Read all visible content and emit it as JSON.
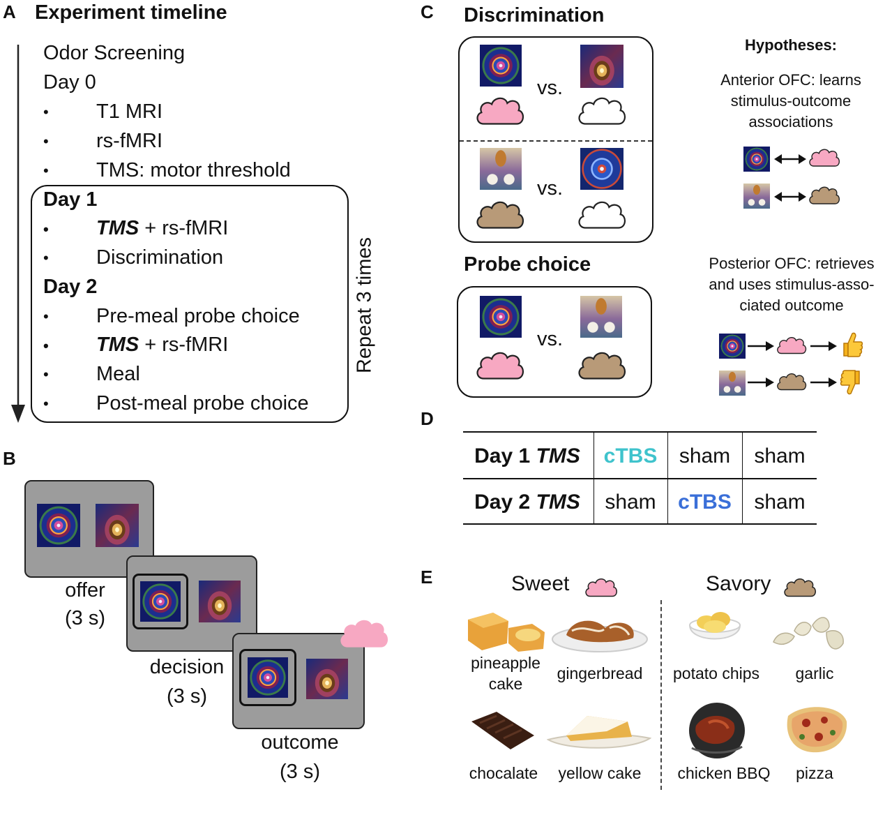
{
  "panels": {
    "a": "A",
    "b": "B",
    "c": "C",
    "d": "D",
    "e": "E"
  },
  "timeline": {
    "title": "Experiment timeline",
    "odor_screening": "Odor Screening",
    "day0": {
      "heading": "Day 0",
      "items": [
        "T1 MRI",
        "rs-fMRI",
        "TMS: motor threshold"
      ]
    },
    "day1": {
      "heading": "Day 1",
      "tms": "TMS",
      "tms_rest": " + rs-fMRI",
      "item2": "Discrimination"
    },
    "day2": {
      "heading": "Day 2",
      "item1": "Pre-meal probe choice",
      "tms": "TMS",
      "tms_rest": " + rs-fMRI",
      "item3": "Meal",
      "item4": "Post-meal probe choice"
    },
    "bullet": "•",
    "repeat": "Repeat 3 times"
  },
  "task": {
    "offer": "offer",
    "offer_dur": "(3 s)",
    "decision": "decision",
    "decision_dur": "(3 s)",
    "outcome": "outcome",
    "outcome_dur": "(3 s)"
  },
  "discrimination": {
    "title": "Discrimination",
    "vs": "vs."
  },
  "probe": {
    "title": "Probe choice",
    "vs": "vs."
  },
  "hypotheses": {
    "heading": "Hypotheses:",
    "anterior": [
      "Anterior OFC: learns",
      "stimulus-outcome",
      "associations"
    ],
    "posterior": [
      "Posterior OFC: retrieves",
      "and uses stimulus-asso-",
      "ciated outcome"
    ]
  },
  "table": {
    "rows": [
      {
        "label": "Day 1 ",
        "tms": "TMS",
        "cells": [
          "cTBS",
          "sham",
          "sham"
        ]
      },
      {
        "label": "Day 2 ",
        "tms": "TMS",
        "cells": [
          "sham",
          "cTBS",
          "sham"
        ]
      }
    ]
  },
  "colors": {
    "ctbs_day1": "#3fc3cc",
    "ctbs_day2": "#3a6fd8",
    "sweet_cloud": "#f7a8c2",
    "savory_cloud": "#b89a78",
    "screen": "#9c9c9c"
  },
  "foods": {
    "sweet_title": "Sweet",
    "savory_title": "Savory",
    "pineapple": [
      "pineapple",
      "cake"
    ],
    "gingerbread": "gingerbread",
    "chocolate": "chocalate",
    "yellow_cake": "yellow cake",
    "potato_chips": "potato chips",
    "garlic": "garlic",
    "chicken": "chicken BBQ",
    "pizza": "pizza"
  }
}
